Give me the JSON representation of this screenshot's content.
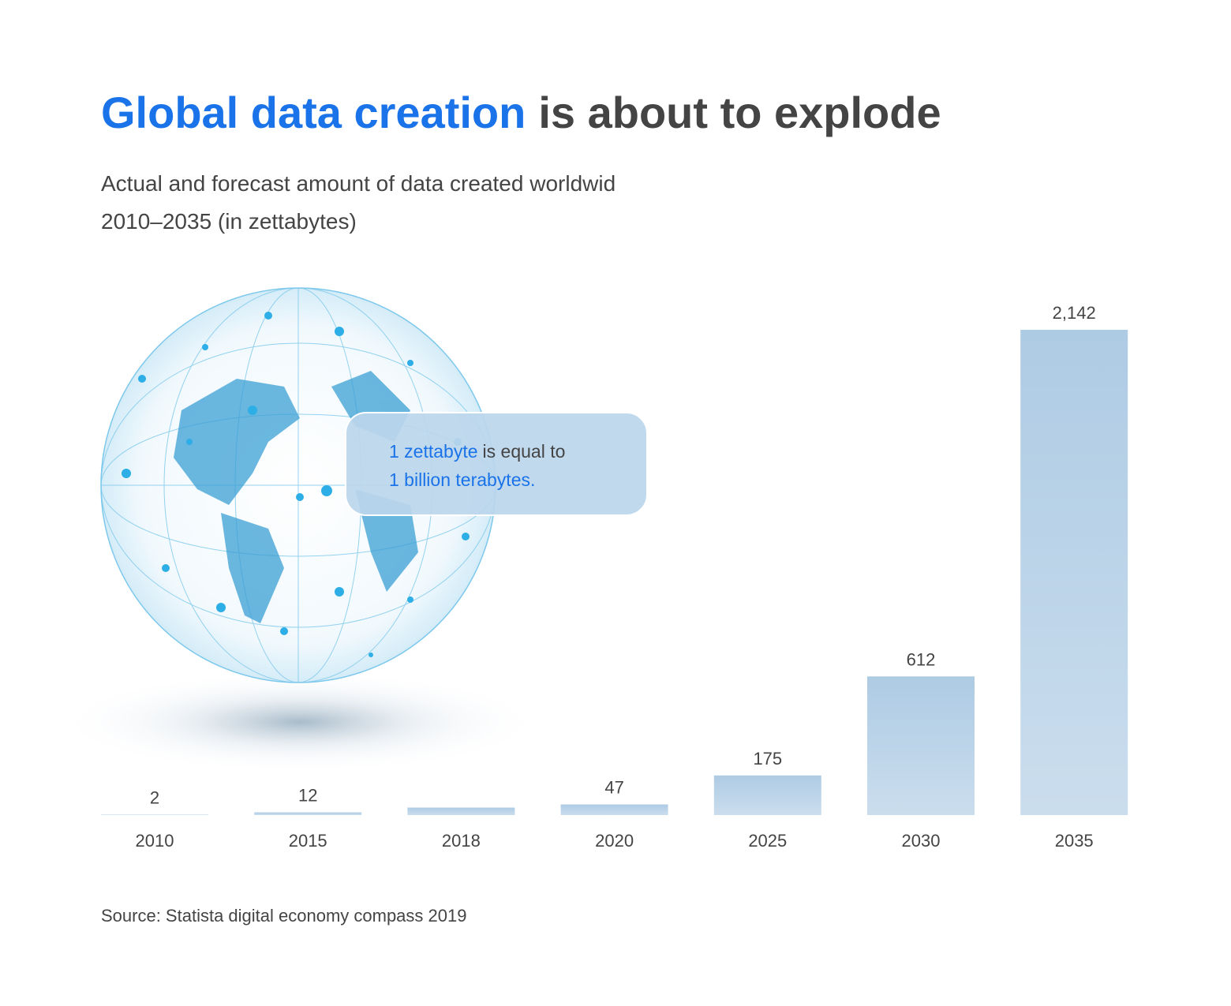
{
  "chart_data": {
    "type": "bar",
    "title": [
      "Global data creation",
      "is about to explode"
    ],
    "subtitle": [
      "Actual and forecast amount of data created worldwid",
      "2010–2035 (in zettabytes)"
    ],
    "annotation": [
      "1 zettabyte",
      "is equal to",
      "1 billion terabytes."
    ],
    "source": "Source: Statista digital economy compass 2019",
    "categories": [
      "2010",
      "2015",
      "2018",
      "2020",
      "2025",
      "2030",
      "2035"
    ],
    "values": [
      2,
      12,
      33,
      47,
      175,
      612,
      2142
    ],
    "value_labels": [
      "2",
      "12",
      null,
      "47",
      "175",
      "612",
      "2,142"
    ],
    "color": "#aecbe4",
    "highlight_color": "#1a73e8",
    "text_color": "#444444"
  }
}
